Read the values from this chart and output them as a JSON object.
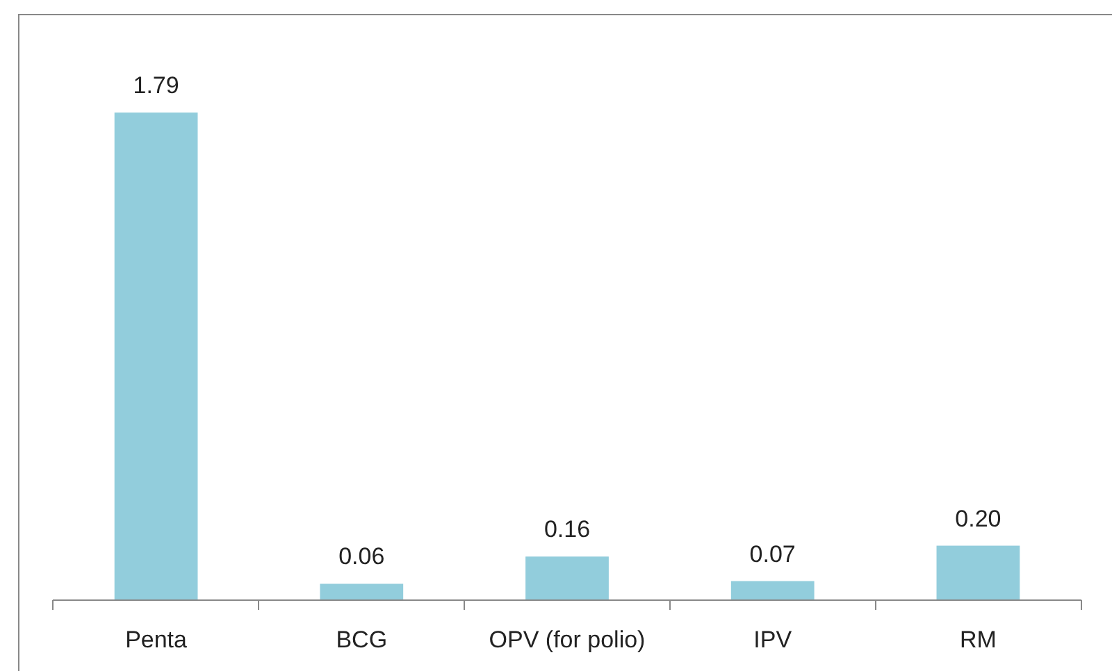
{
  "chart_data": {
    "type": "bar",
    "categories": [
      "Penta",
      "BCG",
      "OPV (for polio)",
      "IPV",
      "RM"
    ],
    "values": [
      1.79,
      0.06,
      0.16,
      0.07,
      0.2
    ],
    "value_labels": [
      "1.79",
      "0.06",
      "0.16",
      "0.07",
      "0.20"
    ],
    "color": "#92cddc"
  }
}
